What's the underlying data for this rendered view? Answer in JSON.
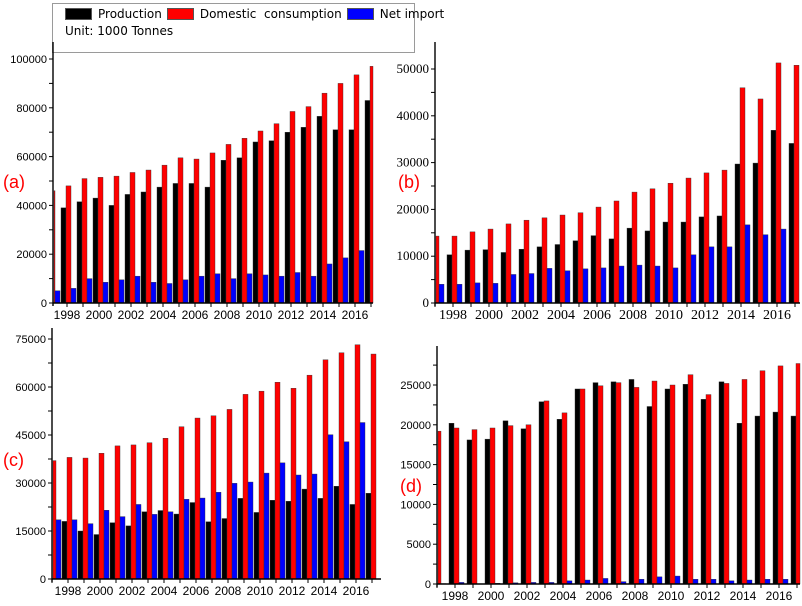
{
  "legend": {
    "items": [
      {
        "label": "Production",
        "color": "#000000"
      },
      {
        "label": "Domestic  consumption",
        "color": "#ff0000"
      },
      {
        "label": "Net import",
        "color": "#0000ff"
      }
    ],
    "unit": "Unit: 1000 Tonnes"
  },
  "chart_data": [
    {
      "type": "bar",
      "panel_label": "(a)",
      "title": "",
      "xlabel": "",
      "ylabel": "",
      "ylim": [
        0,
        100000
      ],
      "yticks": [
        0,
        20000,
        40000,
        60000,
        80000,
        100000
      ],
      "xtick_labels": [
        "1998",
        "2000",
        "2002",
        "2004",
        "2006",
        "2008",
        "2010",
        "2012",
        "2014",
        "2016"
      ],
      "categories": [
        1997,
        1998,
        1999,
        2000,
        2001,
        2002,
        2003,
        2004,
        2005,
        2006,
        2007,
        2008,
        2009,
        2010,
        2011,
        2012,
        2013,
        2014,
        2015,
        2016,
        2017
      ],
      "series": [
        {
          "name": "Production",
          "color": "#000000",
          "values": [
            null,
            39000,
            41500,
            43000,
            40000,
            44500,
            45500,
            47500,
            49000,
            49000,
            47500,
            58500,
            59500,
            66000,
            66500,
            70000,
            72000,
            76500,
            71000,
            71000,
            83000
          ]
        },
        {
          "name": "Domestic consumption",
          "color": "#ff0000",
          "values": [
            46000,
            48000,
            51000,
            51500,
            52000,
            53500,
            54500,
            56500,
            59500,
            59000,
            61500,
            65000,
            67500,
            70500,
            73500,
            78500,
            80500,
            86000,
            90000,
            93500,
            97000
          ]
        },
        {
          "name": "Net import",
          "color": "#0000ff",
          "values": [
            5000,
            6000,
            10000,
            8500,
            9500,
            11000,
            8500,
            8000,
            9500,
            11000,
            12000,
            10000,
            12000,
            11500,
            11000,
            12500,
            11000,
            16000,
            18500,
            21500,
            null
          ]
        }
      ],
      "grid": false
    },
    {
      "type": "bar",
      "panel_label": "(b)",
      "title": "",
      "xlabel": "",
      "ylabel": "",
      "ylim": [
        0,
        50000
      ],
      "yticks": [
        0,
        10000,
        20000,
        30000,
        40000,
        50000
      ],
      "xtick_labels": [
        "1998",
        "2000",
        "2002",
        "2004",
        "2006",
        "2008",
        "2010",
        "2012",
        "2014",
        "2016"
      ],
      "categories": [
        1997,
        1998,
        1999,
        2000,
        2001,
        2002,
        2003,
        2004,
        2005,
        2006,
        2007,
        2008,
        2009,
        2010,
        2011,
        2012,
        2013,
        2014,
        2015,
        2016,
        2017
      ],
      "series": [
        {
          "name": "Production",
          "color": "#000000",
          "values": [
            null,
            10300,
            11300,
            11400,
            10800,
            11500,
            12000,
            12500,
            13300,
            14400,
            13700,
            16000,
            15400,
            17300,
            17300,
            18400,
            18600,
            29700,
            29900,
            36900,
            34100
          ]
        },
        {
          "name": "Domestic consumption",
          "color": "#ff0000",
          "values": [
            14300,
            14300,
            15200,
            15800,
            16900,
            17700,
            18200,
            18800,
            19300,
            20500,
            21800,
            23700,
            24400,
            25600,
            26700,
            27800,
            28400,
            46000,
            43600,
            51300,
            50800
          ]
        },
        {
          "name": "Net import",
          "color": "#0000ff",
          "values": [
            4000,
            4000,
            4300,
            4200,
            6100,
            6300,
            7400,
            6900,
            7300,
            7500,
            7900,
            8100,
            7900,
            7500,
            10300,
            12000,
            12000,
            16700,
            14600,
            15800,
            null
          ]
        }
      ],
      "grid": false
    },
    {
      "type": "bar",
      "panel_label": "(c)",
      "title": "",
      "xlabel": "",
      "ylabel": "",
      "ylim": [
        0,
        75000
      ],
      "yticks": [
        0,
        15000,
        30000,
        45000,
        60000,
        75000
      ],
      "xtick_labels": [
        "1998",
        "2000",
        "2002",
        "2004",
        "2006",
        "2008",
        "2010",
        "2012",
        "2014",
        "2016"
      ],
      "categories": [
        1997,
        1998,
        1999,
        2000,
        2001,
        2002,
        2003,
        2004,
        2005,
        2006,
        2007,
        2008,
        2009,
        2010,
        2011,
        2012,
        2013,
        2014,
        2015,
        2016,
        2017
      ],
      "series": [
        {
          "name": "Production",
          "color": "#000000",
          "values": [
            null,
            18000,
            15000,
            13900,
            17600,
            16600,
            21000,
            21400,
            20300,
            23900,
            17900,
            18900,
            25200,
            20800,
            24600,
            24300,
            28100,
            25200,
            29000,
            23300,
            26800
          ]
        },
        {
          "name": "Domestic consumption",
          "color": "#ff0000",
          "values": [
            37000,
            38000,
            37800,
            39300,
            41600,
            41900,
            42600,
            44000,
            47600,
            50300,
            51000,
            53000,
            57700,
            58700,
            61500,
            59600,
            63700,
            68500,
            70700,
            73200,
            70300
          ]
        },
        {
          "name": "Net import",
          "color": "#0000ff",
          "values": [
            18500,
            18500,
            17300,
            21500,
            19500,
            23300,
            20200,
            21000,
            24900,
            25300,
            27100,
            29900,
            30300,
            33100,
            36300,
            32500,
            32800,
            45100,
            42900,
            48900,
            null
          ]
        }
      ],
      "grid": false
    },
    {
      "type": "bar",
      "panel_label": "(d)",
      "title": "",
      "xlabel": "",
      "ylabel": "",
      "ylim": [
        0,
        28000
      ],
      "yticks": [
        0,
        5000,
        10000,
        15000,
        20000,
        25000
      ],
      "xtick_labels": [
        "1998",
        "2000",
        "2002",
        "2004",
        "2006",
        "2008",
        "2010",
        "2012",
        "2014",
        "2016"
      ],
      "categories": [
        1997,
        1998,
        1999,
        2000,
        2001,
        2002,
        2003,
        2004,
        2005,
        2006,
        2007,
        2008,
        2009,
        2010,
        2011,
        2012,
        2013,
        2014,
        2015,
        2016,
        2017
      ],
      "series": [
        {
          "name": "Production",
          "color": "#000000",
          "values": [
            null,
            20200,
            18100,
            18200,
            20500,
            19500,
            22900,
            20700,
            24500,
            25300,
            25400,
            25700,
            22300,
            24500,
            25100,
            23200,
            25400,
            20200,
            21100,
            21600,
            21100
          ]
        },
        {
          "name": "Domestic consumption",
          "color": "#ff0000",
          "values": [
            19200,
            19600,
            19400,
            19600,
            19900,
            20000,
            23000,
            21500,
            24500,
            24900,
            25300,
            24700,
            25500,
            25000,
            26300,
            23800,
            25200,
            25700,
            26800,
            27400,
            27700
          ]
        },
        {
          "name": "Net import",
          "color": "#0000ff",
          "values": [
            50,
            200,
            0,
            100,
            150,
            200,
            200,
            400,
            500,
            700,
            300,
            600,
            900,
            1000,
            600,
            600,
            400,
            500,
            600,
            600,
            null
          ]
        }
      ],
      "grid": false
    }
  ]
}
